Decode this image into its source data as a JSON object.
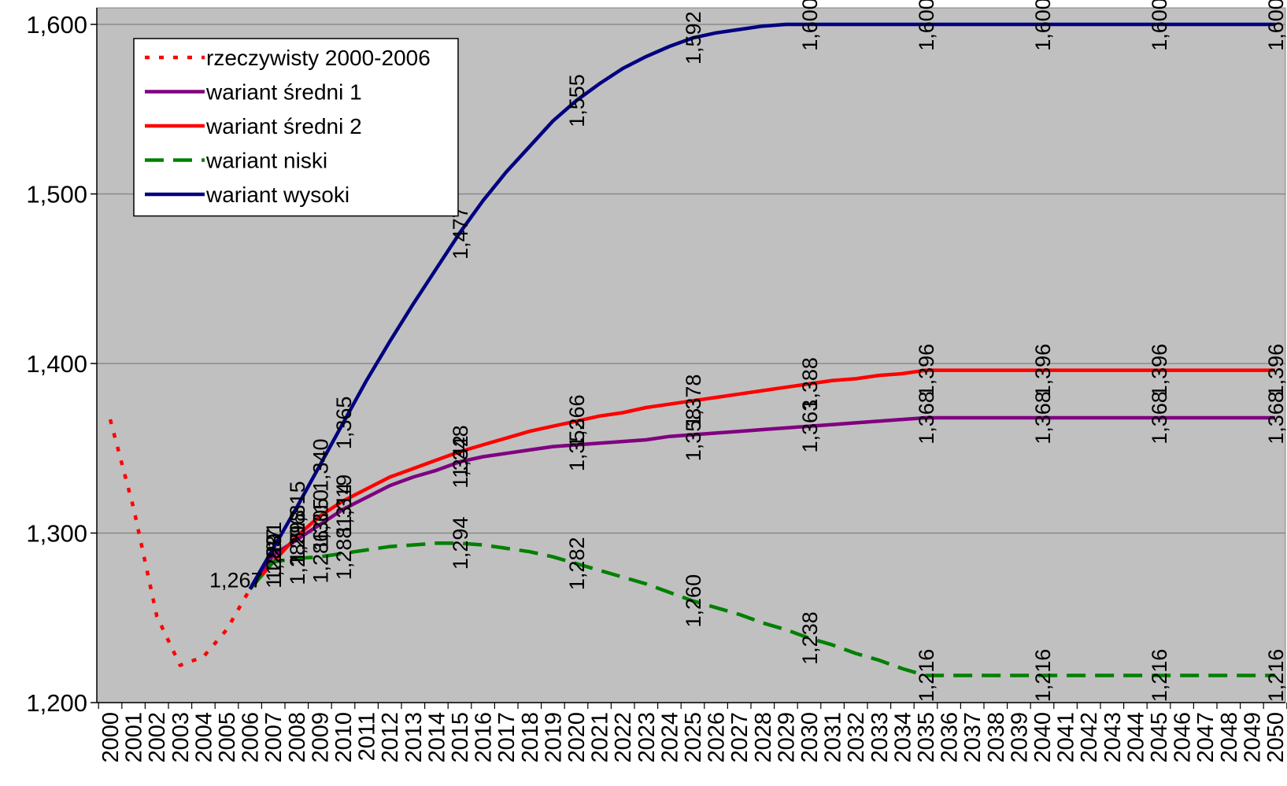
{
  "chart_data": {
    "type": "line",
    "title": "",
    "xlabel": "",
    "ylabel": "",
    "ylim": [
      1.2,
      1.6
    ],
    "yticks": [
      "1,600",
      "1,500",
      "1,400",
      "1,300",
      "1,200"
    ],
    "ytick_values": [
      1.6,
      1.5,
      1.4,
      1.3,
      1.2
    ],
    "x": [
      2000,
      2001,
      2002,
      2003,
      2004,
      2005,
      2006,
      2007,
      2008,
      2009,
      2010,
      2011,
      2012,
      2013,
      2014,
      2015,
      2016,
      2017,
      2018,
      2019,
      2020,
      2021,
      2022,
      2023,
      2024,
      2025,
      2026,
      2027,
      2028,
      2029,
      2030,
      2031,
      2032,
      2033,
      2034,
      2035,
      2036,
      2037,
      2038,
      2039,
      2040,
      2041,
      2042,
      2043,
      2044,
      2045,
      2046,
      2047,
      2048,
      2049,
      2050
    ],
    "grid": true,
    "plot_background": "#c0c0c0",
    "legend_position": "top-left",
    "series": [
      {
        "name": "rzeczywisty 2000-2006",
        "color": "#ff0000",
        "style": "dotted",
        "points": [
          [
            2000,
            1.367
          ],
          [
            2001,
            1.315
          ],
          [
            2002,
            1.251
          ],
          [
            2003,
            1.222
          ],
          [
            2004,
            1.227
          ],
          [
            2005,
            1.243
          ],
          [
            2006,
            1.267
          ]
        ],
        "labels": []
      },
      {
        "name": "wariant średni 1",
        "color": "#800080",
        "style": "solid",
        "points": [
          [
            2006,
            1.267
          ],
          [
            2007,
            1.287
          ],
          [
            2008,
            1.296
          ],
          [
            2009,
            1.305
          ],
          [
            2010,
            1.314
          ],
          [
            2011,
            1.321
          ],
          [
            2012,
            1.328
          ],
          [
            2013,
            1.333
          ],
          [
            2014,
            1.337
          ],
          [
            2015,
            1.342
          ],
          [
            2016,
            1.345
          ],
          [
            2017,
            1.347
          ],
          [
            2018,
            1.349
          ],
          [
            2019,
            1.351
          ],
          [
            2020,
            1.352
          ],
          [
            2021,
            1.353
          ],
          [
            2022,
            1.354
          ],
          [
            2023,
            1.355
          ],
          [
            2024,
            1.357
          ],
          [
            2025,
            1.358
          ],
          [
            2026,
            1.359
          ],
          [
            2027,
            1.36
          ],
          [
            2028,
            1.361
          ],
          [
            2029,
            1.362
          ],
          [
            2030,
            1.363
          ],
          [
            2031,
            1.364
          ],
          [
            2032,
            1.365
          ],
          [
            2033,
            1.366
          ],
          [
            2034,
            1.367
          ],
          [
            2035,
            1.368
          ],
          [
            2040,
            1.368
          ],
          [
            2045,
            1.368
          ],
          [
            2050,
            1.368
          ]
        ],
        "labels": [
          {
            "x": 2007,
            "text": "1,287"
          },
          {
            "x": 2008,
            "text": "1,296"
          },
          {
            "x": 2009,
            "text": "1,305"
          },
          {
            "x": 2010,
            "text": "1,314"
          },
          {
            "x": 2015,
            "text": "1,342"
          },
          {
            "x": 2020,
            "text": "1,352"
          },
          {
            "x": 2025,
            "text": "1,358"
          },
          {
            "x": 2030,
            "text": "1,363"
          },
          {
            "x": 2035,
            "text": "1,368"
          },
          {
            "x": 2040,
            "text": "1,368"
          },
          {
            "x": 2045,
            "text": "1,368"
          },
          {
            "x": 2050,
            "text": "1,368"
          }
        ]
      },
      {
        "name": "wariant średni 2",
        "color": "#ff0000",
        "style": "solid",
        "points": [
          [
            2006,
            1.267
          ],
          [
            2007,
            1.283
          ],
          [
            2008,
            1.298
          ],
          [
            2009,
            1.31
          ],
          [
            2010,
            1.319
          ],
          [
            2011,
            1.326
          ],
          [
            2012,
            1.333
          ],
          [
            2013,
            1.338
          ],
          [
            2014,
            1.343
          ],
          [
            2015,
            1.348
          ],
          [
            2016,
            1.352
          ],
          [
            2017,
            1.356
          ],
          [
            2018,
            1.36
          ],
          [
            2019,
            1.363
          ],
          [
            2020,
            1.366
          ],
          [
            2021,
            1.369
          ],
          [
            2022,
            1.371
          ],
          [
            2023,
            1.374
          ],
          [
            2024,
            1.376
          ],
          [
            2025,
            1.378
          ],
          [
            2026,
            1.38
          ],
          [
            2027,
            1.382
          ],
          [
            2028,
            1.384
          ],
          [
            2029,
            1.386
          ],
          [
            2030,
            1.388
          ],
          [
            2031,
            1.39
          ],
          [
            2032,
            1.391
          ],
          [
            2033,
            1.393
          ],
          [
            2034,
            1.394
          ],
          [
            2035,
            1.396
          ],
          [
            2040,
            1.396
          ],
          [
            2045,
            1.396
          ],
          [
            2050,
            1.396
          ]
        ],
        "labels": [
          {
            "x": 2008,
            "text": "1,298"
          },
          {
            "x": 2009,
            "text": "1,310"
          },
          {
            "x": 2010,
            "text": "1,319"
          },
          {
            "x": 2015,
            "text": "1,348"
          },
          {
            "x": 2020,
            "text": "1,366"
          },
          {
            "x": 2025,
            "text": "1,378"
          },
          {
            "x": 2030,
            "text": "1,388"
          },
          {
            "x": 2035,
            "text": "1,396"
          },
          {
            "x": 2040,
            "text": "1,396"
          },
          {
            "x": 2045,
            "text": "1,396"
          },
          {
            "x": 2050,
            "text": "1,396"
          }
        ]
      },
      {
        "name": "wariant niski",
        "color": "#008000",
        "style": "dashed",
        "points": [
          [
            2006,
            1.267
          ],
          [
            2007,
            1.283
          ],
          [
            2008,
            1.285
          ],
          [
            2009,
            1.286
          ],
          [
            2010,
            1.288
          ],
          [
            2011,
            1.29
          ],
          [
            2012,
            1.292
          ],
          [
            2013,
            1.293
          ],
          [
            2014,
            1.294
          ],
          [
            2015,
            1.294
          ],
          [
            2016,
            1.293
          ],
          [
            2017,
            1.291
          ],
          [
            2018,
            1.289
          ],
          [
            2019,
            1.286
          ],
          [
            2020,
            1.282
          ],
          [
            2021,
            1.278
          ],
          [
            2022,
            1.274
          ],
          [
            2023,
            1.27
          ],
          [
            2024,
            1.265
          ],
          [
            2025,
            1.26
          ],
          [
            2026,
            1.256
          ],
          [
            2027,
            1.252
          ],
          [
            2028,
            1.247
          ],
          [
            2029,
            1.243
          ],
          [
            2030,
            1.238
          ],
          [
            2031,
            1.234
          ],
          [
            2032,
            1.229
          ],
          [
            2033,
            1.225
          ],
          [
            2034,
            1.22
          ],
          [
            2035,
            1.216
          ],
          [
            2040,
            1.216
          ],
          [
            2045,
            1.216
          ],
          [
            2050,
            1.216
          ]
        ],
        "labels": [
          {
            "x": 2007,
            "text": "1,283"
          },
          {
            "x": 2008,
            "text": "1,285"
          },
          {
            "x": 2009,
            "text": "1,286"
          },
          {
            "x": 2010,
            "text": "1,288"
          },
          {
            "x": 2015,
            "text": "1,294"
          },
          {
            "x": 2020,
            "text": "1,282"
          },
          {
            "x": 2025,
            "text": "1,260"
          },
          {
            "x": 2030,
            "text": "1,238"
          },
          {
            "x": 2035,
            "text": "1,216"
          },
          {
            "x": 2040,
            "text": "1,216"
          },
          {
            "x": 2045,
            "text": "1,216"
          },
          {
            "x": 2050,
            "text": "1,216"
          }
        ]
      },
      {
        "name": "wariant wysoki",
        "color": "#000080",
        "style": "solid",
        "points": [
          [
            2006,
            1.267
          ],
          [
            2007,
            1.291
          ],
          [
            2008,
            1.315
          ],
          [
            2009,
            1.34
          ],
          [
            2010,
            1.365
          ],
          [
            2011,
            1.39
          ],
          [
            2012,
            1.413
          ],
          [
            2013,
            1.435
          ],
          [
            2014,
            1.456
          ],
          [
            2015,
            1.477
          ],
          [
            2016,
            1.496
          ],
          [
            2017,
            1.513
          ],
          [
            2018,
            1.528
          ],
          [
            2019,
            1.543
          ],
          [
            2020,
            1.555
          ],
          [
            2021,
            1.565
          ],
          [
            2022,
            1.574
          ],
          [
            2023,
            1.581
          ],
          [
            2024,
            1.587
          ],
          [
            2025,
            1.592
          ],
          [
            2026,
            1.595
          ],
          [
            2027,
            1.597
          ],
          [
            2028,
            1.599
          ],
          [
            2029,
            1.6
          ],
          [
            2030,
            1.6
          ],
          [
            2031,
            1.6
          ],
          [
            2035,
            1.6
          ],
          [
            2040,
            1.6
          ],
          [
            2045,
            1.6
          ],
          [
            2050,
            1.6
          ]
        ],
        "labels": [
          {
            "x": 2007,
            "text": "1,291"
          },
          {
            "x": 2008,
            "text": "1,315"
          },
          {
            "x": 2009,
            "text": "1,340"
          },
          {
            "x": 2010,
            "text": "1,365"
          },
          {
            "x": 2015,
            "text": "1,477"
          },
          {
            "x": 2020,
            "text": "1,555"
          },
          {
            "x": 2025,
            "text": "1,592"
          },
          {
            "x": 2030,
            "text": "1,600"
          },
          {
            "x": 2035,
            "text": "1,600"
          },
          {
            "x": 2040,
            "text": "1,600"
          },
          {
            "x": 2045,
            "text": "1,600"
          },
          {
            "x": 2050,
            "text": "1,600"
          }
        ]
      }
    ],
    "annotations": [
      {
        "x": 2006,
        "y": 1.267,
        "text": "1,267"
      }
    ]
  }
}
